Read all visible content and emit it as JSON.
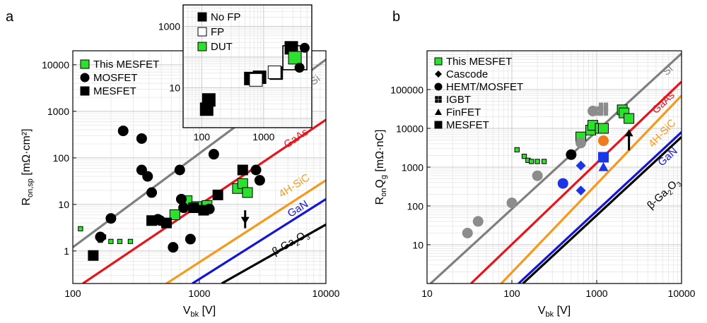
{
  "chart_data": [
    {
      "type": "scatter",
      "panel_label": "a",
      "ylabel": "R",
      "ylabel_sub": "on,sp",
      "ylabel_unit": "[mΩ·cm²]",
      "xlabel": "V",
      "xlabel_sub": "bk",
      "xlabel_unit": "[V]",
      "x_scale": "log",
      "y_scale": "log",
      "xlim": [
        100,
        10000
      ],
      "ylim": [
        0.2,
        20000
      ],
      "grid": true,
      "x_ticks": [
        {
          "v": 100,
          "label": "100"
        },
        {
          "v": 1000,
          "label": "1000"
        },
        {
          "v": 10000,
          "label": "10000"
        }
      ],
      "y_ticks": [
        {
          "v": 1,
          "label": "1"
        },
        {
          "v": 10,
          "label": "10"
        },
        {
          "v": 100,
          "label": "100"
        },
        {
          "v": 1000,
          "label": "1000"
        },
        {
          "v": 10000,
          "label": "10000"
        }
      ],
      "legend": {
        "position": "top-left",
        "entries": [
          {
            "marker": "square-green",
            "label": "This MESFET"
          },
          {
            "marker": "circle-black",
            "label": "MOSFET"
          },
          {
            "marker": "square-black",
            "label": "MESFET"
          }
        ]
      },
      "limit_lines": [
        {
          "name": "Si",
          "color": "#7f7f7f",
          "points": [
            [
              100,
              1.2
            ],
            [
              10000,
              13000
            ]
          ],
          "label_at": [
            8500,
            4100
          ]
        },
        {
          "name": "GaAs",
          "color": "#e8141b",
          "points": [
            [
              120,
              0.2
            ],
            [
              10000,
              660
            ]
          ],
          "label_at": [
            6000,
            230
          ]
        },
        {
          "name": "4H-SiC",
          "color": "#f59a1a",
          "points": [
            [
              550,
              0.2
            ],
            [
              10000,
              33
            ]
          ],
          "label_at": [
            5800,
            22
          ]
        },
        {
          "name": "GaN",
          "color": "#1515d8",
          "points": [
            [
              880,
              0.2
            ],
            [
              10000,
              13
            ]
          ],
          "label_at": [
            6200,
            7
          ]
        },
        {
          "name": "β-Ga2O3",
          "color": "#000000",
          "points": [
            [
              1500,
              0.2
            ],
            [
              10000,
              3.7
            ]
          ],
          "label_at": [
            5400,
            1.3
          ]
        }
      ],
      "series": [
        {
          "name": "This MESFET",
          "marker": "square-green-small",
          "x": [
            115,
            165,
            175,
            200,
            235,
            285
          ],
          "y": [
            3,
            1.7,
            2,
            1.6,
            1.6,
            1.6
          ]
        },
        {
          "name": "This MESFET",
          "marker": "square-green",
          "x": [
            640,
            800,
            950,
            1150,
            2000,
            2200,
            2400
          ],
          "y": [
            6,
            12,
            9,
            9.5,
            22,
            28,
            18
          ]
        },
        {
          "name": "MOSFET",
          "marker": "circle-black",
          "x": [
            165,
            200,
            250,
            350,
            350,
            390,
            420,
            470,
            490,
            620,
            700,
            720,
            750,
            850,
            1200,
            1300,
            2800,
            3000
          ],
          "y": [
            2,
            5,
            380,
            260,
            55,
            40,
            18,
            4.8,
            4.5,
            1.2,
            55,
            13,
            8.5,
            1.8,
            8,
            120,
            55,
            33
          ]
        },
        {
          "name": "MESFET",
          "marker": "square-black",
          "x": [
            145,
            420,
            550,
            900,
            1080,
            1400,
            2200
          ],
          "y": [
            0.8,
            4.5,
            4,
            8.5,
            7.5,
            16,
            55
          ]
        }
      ],
      "arrow": {
        "x": 2300,
        "y_from": 7.5,
        "y_to": 3.8
      },
      "inset": {
        "xlim": [
          50,
          6000
        ],
        "ylim": [
          0.5,
          5000
        ],
        "x_ticks": [
          {
            "v": 100,
            "label": "100"
          },
          {
            "v": 1000,
            "label": "1000"
          }
        ],
        "y_ticks": [
          {
            "v": 10,
            "label": "10"
          },
          {
            "v": 1000,
            "label": "1000"
          }
        ],
        "legend": [
          {
            "marker": "square-black",
            "label": "No FP"
          },
          {
            "marker": "square-white",
            "label": "FP"
          },
          {
            "marker": "square-green",
            "label": "DUT"
          }
        ],
        "series": [
          {
            "name": "No FP",
            "marker": "square-black",
            "x": [
              120,
              130,
              620,
              860,
              1600,
              2800
            ],
            "y": [
              2,
              4,
              20,
              22,
              30,
              200
            ]
          },
          {
            "name": "FP",
            "marker": "square-white",
            "x": [
              750,
              1500
            ],
            "y": [
              18,
              32
            ]
          },
          {
            "name": "DUT",
            "marker": "square-green",
            "x": [
              3200
            ],
            "y": [
              95
            ]
          }
        ],
        "outlined": {
          "x": 3200,
          "y": 95
        },
        "extra_circles": {
          "x": [
            4600,
            3800
          ],
          "y": [
            200,
            45
          ]
        }
      }
    },
    {
      "type": "scatter",
      "panel_label": "b",
      "ylabel": "R",
      "ylabel_sub": "on",
      "ylabel_mid": "Q",
      "ylabel_sub2": "g",
      "ylabel_unit": "[mΩ·nC]",
      "xlabel": "V",
      "xlabel_sub": "bk",
      "xlabel_unit": "[V]",
      "x_scale": "log",
      "y_scale": "log",
      "xlim": [
        10,
        10000
      ],
      "ylim": [
        1,
        1000000
      ],
      "grid": true,
      "x_ticks": [
        {
          "v": 10,
          "label": "10"
        },
        {
          "v": 100,
          "label": "100"
        },
        {
          "v": 1000,
          "label": "1000"
        },
        {
          "v": 10000,
          "label": "10000"
        }
      ],
      "y_ticks": [
        {
          "v": 10,
          "label": "10"
        },
        {
          "v": 100,
          "label": "100"
        },
        {
          "v": 1000,
          "label": "1000"
        },
        {
          "v": 10000,
          "label": "10000"
        },
        {
          "v": 100000,
          "label": "100000"
        }
      ],
      "legend": {
        "position": "top-left",
        "entries": [
          {
            "marker": "square-green",
            "label": "This MESFET"
          },
          {
            "marker": "diamond-black",
            "label": "Cascode"
          },
          {
            "marker": "circle-black",
            "label": "HEMT/MOSFET"
          },
          {
            "marker": "grid-black",
            "label": "IGBT"
          },
          {
            "marker": "triangle-black",
            "label": "FinFET"
          },
          {
            "marker": "square-black",
            "label": "MESFET"
          }
        ]
      },
      "limit_lines": [
        {
          "name": "Si",
          "color": "#7f7f7f",
          "points": [
            [
              11,
              1
            ],
            [
              10000,
              850000
            ]
          ],
          "label_at": [
            7300,
            270000
          ]
        },
        {
          "name": "GaAs",
          "color": "#e8141b",
          "points": [
            [
              33,
              1
            ],
            [
              10000,
              160000
            ]
          ],
          "label_at": [
            6500,
            40000
          ]
        },
        {
          "name": "4H-SiC",
          "color": "#f59a1a",
          "points": [
            [
              75,
              1
            ],
            [
              10000,
              70000
            ]
          ],
          "label_at": [
            6300,
            6500
          ]
        },
        {
          "name": "GaN",
          "color": "#1515d8",
          "points": [
            [
              120,
              1
            ],
            [
              10000,
              8000
            ]
          ],
          "label_at": [
            7300,
            1600
          ]
        },
        {
          "name": "β-Ga2O3",
          "color": "#000000",
          "points": [
            [
              135,
              1
            ],
            [
              10000,
              6000
            ]
          ],
          "label_at": [
            6500,
            180
          ]
        }
      ],
      "series": [
        {
          "name": "This MESFET",
          "marker": "square-green-small",
          "x": [
            115,
            140,
            155,
            170,
            200,
            240
          ],
          "y": [
            2800,
            1900,
            1500,
            1400,
            1400,
            1400
          ]
        },
        {
          "name": "This MESFET",
          "marker": "square-green",
          "x": [
            650,
            850,
            900,
            1100,
            1200,
            2000,
            2100,
            2400
          ],
          "y": [
            6000,
            9000,
            12000,
            10000,
            10000,
            30000,
            25000,
            18000
          ]
        },
        {
          "name": "MOSFET",
          "marker": "circle-grey",
          "x": [
            30,
            40,
            100,
            200,
            650,
            900
          ],
          "y": [
            20,
            40,
            120,
            600,
            4200,
            28000
          ]
        },
        {
          "name": "MOSFET",
          "marker": "circle-black",
          "x": [
            500
          ],
          "y": [
            2100
          ]
        },
        {
          "name": "HEMT",
          "marker": "circle-blue",
          "x": [
            400
          ],
          "y": [
            380
          ]
        },
        {
          "name": "HEMT",
          "marker": "circle-orange",
          "x": [
            1200
          ],
          "y": [
            4800
          ]
        },
        {
          "name": "Cascode",
          "marker": "diamond-blue",
          "x": [
            650,
            650
          ],
          "y": [
            1100,
            250
          ]
        },
        {
          "name": "IGBT",
          "marker": "grid-grey",
          "x": [
            1000,
            1200,
            1200
          ],
          "y": [
            28000,
            35000,
            28000
          ]
        },
        {
          "name": "FinFET",
          "marker": "triangle-blue",
          "x": [
            1200
          ],
          "y": [
            1000
          ]
        },
        {
          "name": "MESFET",
          "marker": "square-blue",
          "x": [
            1200
          ],
          "y": [
            1800
          ]
        }
      ],
      "arrow": {
        "x": 2400,
        "y_from": 2700,
        "y_to": 9500
      }
    }
  ]
}
